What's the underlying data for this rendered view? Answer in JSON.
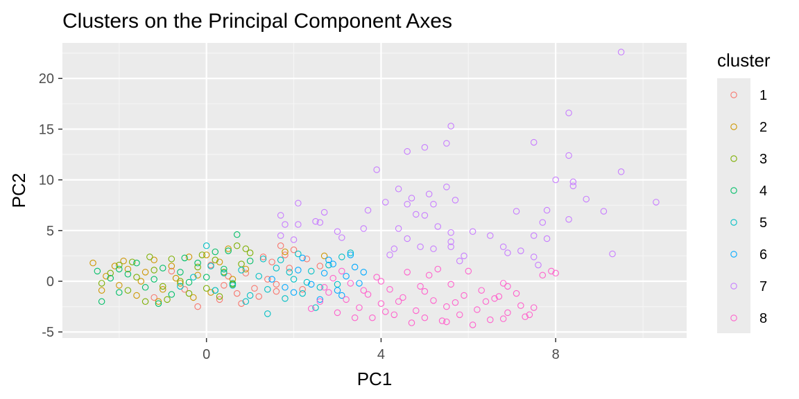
{
  "chart_data": {
    "type": "scatter",
    "title": "Clusters on the Principal Component Axes",
    "xlabel": "PC1",
    "ylabel": "PC2",
    "xlim": [
      -3.3,
      11.0
    ],
    "ylim": [
      -5.6,
      23.5
    ],
    "x_ticks": [
      0,
      4,
      8
    ],
    "y_ticks": [
      -5,
      0,
      5,
      10,
      15,
      20
    ],
    "grid": true,
    "legend": {
      "title": "cluster",
      "position": "right"
    },
    "marker": "open-circle",
    "series": [
      {
        "name": "1",
        "color": "#F8766D",
        "points": [
          [
            -0.2,
            -2.5
          ],
          [
            0.3,
            -1.8
          ],
          [
            0.8,
            -2.2
          ],
          [
            1.2,
            -1.5
          ],
          [
            1.6,
            -1.0
          ],
          [
            0.9,
            0.8
          ],
          [
            1.5,
            1.9
          ],
          [
            1.8,
            2.6
          ],
          [
            2.0,
            3.1
          ],
          [
            1.6,
            -0.3
          ],
          [
            0.5,
            0.5
          ],
          [
            -0.5,
            -0.8
          ],
          [
            -1.2,
            -1.6
          ],
          [
            0.1,
            1.6
          ],
          [
            1.1,
            -0.7
          ],
          [
            1.9,
            1.3
          ],
          [
            2.3,
            2.2
          ],
          [
            0.7,
            -1.2
          ],
          [
            -0.8,
            1.0
          ],
          [
            1.4,
            0.2
          ],
          [
            2.2,
            -0.8
          ],
          [
            2.6,
            1.5
          ],
          [
            1.7,
            3.5
          ],
          [
            0.4,
            -0.4
          ],
          [
            1.3,
            2.4
          ]
        ]
      },
      {
        "name": "2",
        "color": "#CD9600",
        "points": [
          [
            -2.6,
            1.8
          ],
          [
            -2.3,
            0.5
          ],
          [
            -2.0,
            -0.4
          ],
          [
            -1.8,
            1.2
          ],
          [
            -1.6,
            -1.4
          ],
          [
            -1.4,
            0.9
          ],
          [
            -1.2,
            2.1
          ],
          [
            -1.0,
            -0.8
          ],
          [
            -0.8,
            1.5
          ],
          [
            -0.6,
            -0.2
          ],
          [
            -0.4,
            2.4
          ],
          [
            -0.2,
            0.6
          ],
          [
            0.1,
            -1.1
          ],
          [
            0.3,
            1.9
          ],
          [
            0.6,
            0.2
          ],
          [
            -1.9,
            2.0
          ],
          [
            -2.4,
            -0.9
          ],
          [
            -1.1,
            -2.0
          ],
          [
            -0.7,
            0.3
          ],
          [
            0.0,
            2.6
          ],
          [
            0.9,
            1.2
          ],
          [
            -1.5,
            0.0
          ],
          [
            -2.1,
            1.5
          ],
          [
            -0.3,
            -1.6
          ],
          [
            0.5,
            3.2
          ],
          [
            1.8,
            2.9
          ],
          [
            2.7,
            2.5
          ]
        ]
      },
      {
        "name": "3",
        "color": "#7CAE00",
        "points": [
          [
            -2.4,
            -0.2
          ],
          [
            -2.2,
            0.8
          ],
          [
            -2.0,
            1.6
          ],
          [
            -1.8,
            -0.9
          ],
          [
            -1.6,
            0.4
          ],
          [
            -1.4,
            -2.0
          ],
          [
            -1.2,
            1.1
          ],
          [
            -1.0,
            -0.5
          ],
          [
            -0.8,
            2.2
          ],
          [
            -0.6,
            0.0
          ],
          [
            -0.4,
            -1.2
          ],
          [
            -0.2,
            1.4
          ],
          [
            0.0,
            -0.7
          ],
          [
            0.2,
            2.1
          ],
          [
            0.4,
            0.9
          ],
          [
            0.6,
            -0.3
          ],
          [
            0.8,
            1.7
          ],
          [
            1.0,
            2.8
          ],
          [
            0.7,
            3.5
          ],
          [
            0.9,
            3.2
          ],
          [
            -1.7,
            1.9
          ],
          [
            -0.9,
            -1.8
          ],
          [
            -0.1,
            2.6
          ],
          [
            0.3,
            -1.5
          ],
          [
            -1.3,
            2.4
          ]
        ]
      },
      {
        "name": "4",
        "color": "#00BE67",
        "points": [
          [
            -2.5,
            1.0
          ],
          [
            -2.4,
            -2.0
          ],
          [
            -2.2,
            0.3
          ],
          [
            -2.0,
            -1.1
          ],
          [
            -1.8,
            0.7
          ],
          [
            -1.6,
            1.8
          ],
          [
            -1.4,
            -0.6
          ],
          [
            -1.2,
            0.2
          ],
          [
            -1.0,
            1.3
          ],
          [
            -0.8,
            -1.3
          ],
          [
            -0.6,
            0.9
          ],
          [
            -0.4,
            -0.1
          ],
          [
            -0.2,
            1.8
          ],
          [
            0.0,
            0.4
          ],
          [
            0.2,
            -0.9
          ],
          [
            0.4,
            1.2
          ],
          [
            0.6,
            -0.2
          ],
          [
            0.7,
            4.6
          ],
          [
            1.0,
            2.0
          ],
          [
            -2.0,
            1.2
          ],
          [
            -1.1,
            -2.2
          ],
          [
            -0.5,
            2.3
          ],
          [
            0.5,
            3.0
          ],
          [
            0.2,
            2.9
          ]
        ]
      },
      {
        "name": "5",
        "color": "#00BFC4",
        "points": [
          [
            -0.6,
            -0.5
          ],
          [
            -0.3,
            0.4
          ],
          [
            0.0,
            3.5
          ],
          [
            0.2,
            -0.9
          ],
          [
            0.4,
            0.8
          ],
          [
            0.6,
            -0.4
          ],
          [
            0.8,
            1.1
          ],
          [
            1.0,
            -1.4
          ],
          [
            1.2,
            0.5
          ],
          [
            1.4,
            -0.8
          ],
          [
            1.6,
            1.3
          ],
          [
            1.8,
            -1.7
          ],
          [
            2.0,
            0.2
          ],
          [
            2.2,
            -1.2
          ],
          [
            2.4,
            1.0
          ],
          [
            2.6,
            -0.6
          ],
          [
            2.8,
            1.6
          ],
          [
            3.0,
            -0.3
          ],
          [
            3.1,
            2.4
          ],
          [
            3.3,
            2.8
          ],
          [
            1.4,
            -3.2
          ],
          [
            1.7,
            2.1
          ],
          [
            2.1,
            2.7
          ],
          [
            0.9,
            -2.0
          ],
          [
            1.3,
            2.2
          ],
          [
            2.5,
            -2.6
          ],
          [
            0.1,
            1.5
          ],
          [
            1.9,
            0.9
          ],
          [
            2.3,
            -0.1
          ]
        ]
      },
      {
        "name": "6",
        "color": "#00A9FF",
        "points": [
          [
            1.5,
            0.2
          ],
          [
            1.8,
            -0.6
          ],
          [
            2.1,
            1.1
          ],
          [
            2.4,
            -0.3
          ],
          [
            2.7,
            0.8
          ],
          [
            3.0,
            -0.9
          ],
          [
            3.2,
            0.5
          ],
          [
            3.4,
            1.4
          ],
          [
            3.5,
            -0.2
          ],
          [
            3.3,
            2.6
          ],
          [
            2.9,
            1.7
          ],
          [
            2.6,
            -1.8
          ],
          [
            2.2,
            2.3
          ],
          [
            3.1,
            -1.4
          ],
          [
            3.6,
            0.9
          ],
          [
            2.0,
            -1.1
          ],
          [
            2.8,
            2.1
          ]
        ]
      },
      {
        "name": "7",
        "color": "#C77CFF",
        "points": [
          [
            9.5,
            22.6
          ],
          [
            8.3,
            16.6
          ],
          [
            5.6,
            15.3
          ],
          [
            7.5,
            13.7
          ],
          [
            5.5,
            13.6
          ],
          [
            5.0,
            13.2
          ],
          [
            4.6,
            12.8
          ],
          [
            8.3,
            12.4
          ],
          [
            3.9,
            11.0
          ],
          [
            9.5,
            10.8
          ],
          [
            8.0,
            10.0
          ],
          [
            8.4,
            9.8
          ],
          [
            8.4,
            9.4
          ],
          [
            5.5,
            9.3
          ],
          [
            4.4,
            9.1
          ],
          [
            5.1,
            8.6
          ],
          [
            4.7,
            8.2
          ],
          [
            8.7,
            8.1
          ],
          [
            4.6,
            7.6
          ],
          [
            10.3,
            7.8
          ],
          [
            2.1,
            7.7
          ],
          [
            4.1,
            7.8
          ],
          [
            5.2,
            7.6
          ],
          [
            5.7,
            8.0
          ],
          [
            3.7,
            7.0
          ],
          [
            9.1,
            6.9
          ],
          [
            7.1,
            6.9
          ],
          [
            7.8,
            7.0
          ],
          [
            2.7,
            6.8
          ],
          [
            1.7,
            6.5
          ],
          [
            4.8,
            6.6
          ],
          [
            5.0,
            6.5
          ],
          [
            8.3,
            6.1
          ],
          [
            2.5,
            5.9
          ],
          [
            2.6,
            5.8
          ],
          [
            7.7,
            5.8
          ],
          [
            1.8,
            5.6
          ],
          [
            2.1,
            5.6
          ],
          [
            3.6,
            5.2
          ],
          [
            4.4,
            5.2
          ],
          [
            5.3,
            5.4
          ],
          [
            3.0,
            4.9
          ],
          [
            6.1,
            4.9
          ],
          [
            5.6,
            4.8
          ],
          [
            1.7,
            4.5
          ],
          [
            7.5,
            4.5
          ],
          [
            6.5,
            4.5
          ],
          [
            2.0,
            4.1
          ],
          [
            3.1,
            4.3
          ],
          [
            4.6,
            4.2
          ],
          [
            7.8,
            4.2
          ],
          [
            5.6,
            3.9
          ],
          [
            6.8,
            3.4
          ],
          [
            4.3,
            3.2
          ],
          [
            5.2,
            3.2
          ],
          [
            4.9,
            3.4
          ],
          [
            5.6,
            3.4
          ],
          [
            7.2,
            3.0
          ],
          [
            6.9,
            2.8
          ],
          [
            9.3,
            2.7
          ],
          [
            5.9,
            2.5
          ],
          [
            7.5,
            2.4
          ],
          [
            4.2,
            2.6
          ],
          [
            5.8,
            2.0
          ],
          [
            7.6,
            1.6
          ]
        ]
      },
      {
        "name": "8",
        "color": "#FF61CC",
        "points": [
          [
            2.4,
            -2.7
          ],
          [
            2.6,
            -2.0
          ],
          [
            2.8,
            -1.1
          ],
          [
            3.0,
            -3.1
          ],
          [
            3.2,
            -1.8
          ],
          [
            3.3,
            -0.2
          ],
          [
            3.5,
            -2.6
          ],
          [
            3.7,
            -1.3
          ],
          [
            3.8,
            -3.6
          ],
          [
            3.9,
            0.4
          ],
          [
            4.0,
            -2.2
          ],
          [
            4.2,
            -0.8
          ],
          [
            4.3,
            -3.3
          ],
          [
            4.5,
            -1.6
          ],
          [
            4.6,
            0.9
          ],
          [
            4.8,
            -2.9
          ],
          [
            4.9,
            -0.5
          ],
          [
            5.0,
            -3.6
          ],
          [
            5.2,
            -1.9
          ],
          [
            5.3,
            1.2
          ],
          [
            5.5,
            -2.5
          ],
          [
            5.6,
            -0.3
          ],
          [
            5.8,
            -3.3
          ],
          [
            5.9,
            -1.4
          ],
          [
            6.0,
            1.0
          ],
          [
            6.2,
            -2.8
          ],
          [
            6.3,
            -0.9
          ],
          [
            6.5,
            -3.8
          ],
          [
            6.6,
            -1.7
          ],
          [
            6.8,
            -0.2
          ],
          [
            6.9,
            -3.1
          ],
          [
            7.1,
            -1.2
          ],
          [
            7.2,
            -2.4
          ],
          [
            7.4,
            -3.3
          ],
          [
            7.5,
            -2.6
          ],
          [
            7.7,
            0.6
          ],
          [
            7.9,
            1.0
          ],
          [
            8.0,
            0.8
          ],
          [
            6.8,
            -3.7
          ],
          [
            6.1,
            -4.3
          ],
          [
            5.4,
            -3.9
          ],
          [
            4.7,
            -4.1
          ],
          [
            4.1,
            -3.0
          ],
          [
            3.6,
            -0.9
          ],
          [
            2.9,
            0.3
          ],
          [
            3.1,
            1.0
          ],
          [
            2.7,
            -0.6
          ],
          [
            5.1,
            0.6
          ],
          [
            6.7,
            -1.5
          ],
          [
            4.4,
            -2.0
          ],
          [
            5.7,
            -2.1
          ],
          [
            3.4,
            -3.6
          ],
          [
            6.4,
            -2.0
          ],
          [
            7.3,
            -3.5
          ],
          [
            5.0,
            -1.0
          ],
          [
            4.0,
            0.0
          ],
          [
            6.9,
            -0.5
          ],
          [
            5.5,
            -4.0
          ]
        ]
      }
    ]
  }
}
